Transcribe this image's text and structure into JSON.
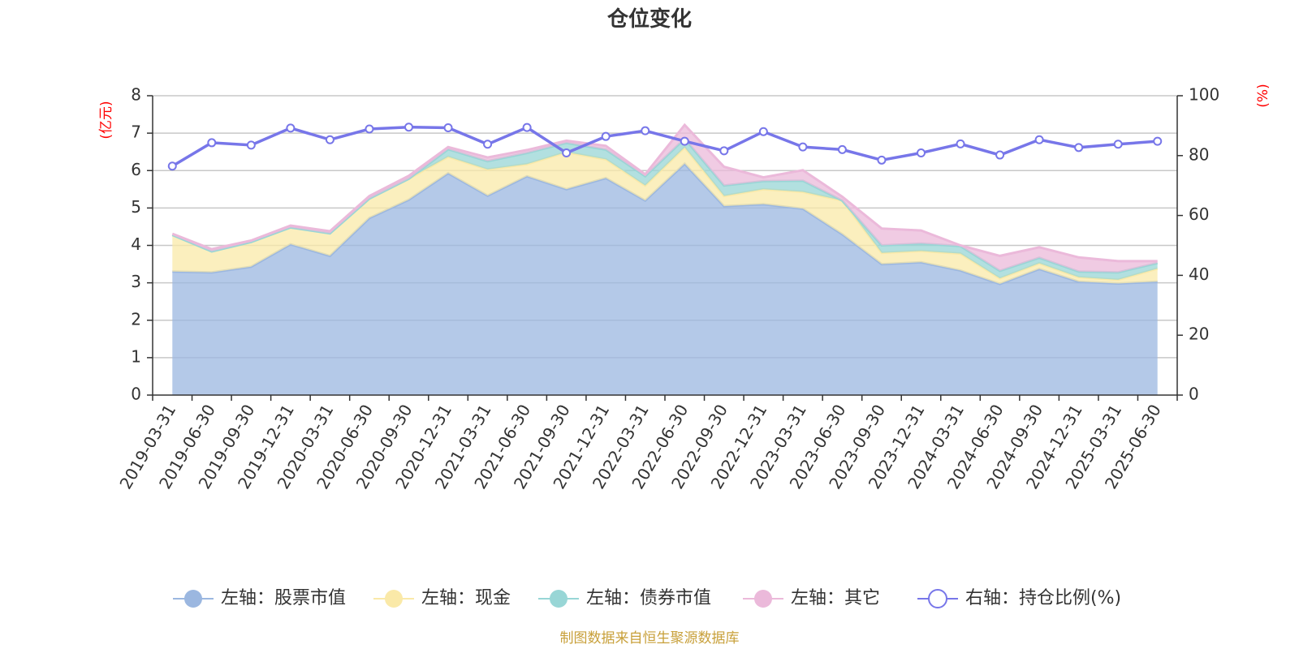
{
  "chart_data": {
    "type": "area",
    "title": "仓位变化",
    "source": "制图数据来自恒生聚源数据库",
    "left_unit": "(亿元)",
    "right_unit": "(%)",
    "categories": [
      "2019-03-31",
      "2019-06-30",
      "2019-09-30",
      "2019-12-31",
      "2020-03-31",
      "2020-06-30",
      "2020-09-30",
      "2020-12-31",
      "2021-03-31",
      "2021-06-30",
      "2021-09-30",
      "2021-12-31",
      "2022-03-31",
      "2022-06-30",
      "2022-09-30",
      "2022-12-31",
      "2023-03-31",
      "2023-06-30",
      "2023-09-30",
      "2023-12-31",
      "2024-03-31",
      "2024-06-30",
      "2024-09-30",
      "2024-12-31",
      "2025-03-31",
      "2025-06-30"
    ],
    "left_axis": {
      "min": 0,
      "max": 8,
      "ticks": [
        0,
        1,
        2,
        3,
        4,
        5,
        6,
        7,
        8
      ]
    },
    "right_axis": {
      "min": 0,
      "max": 100,
      "ticks": [
        0,
        20,
        40,
        60,
        80,
        100
      ]
    },
    "grid": true,
    "legend_position": "bottom",
    "series": [
      {
        "name": "左轴：股票市值",
        "axis": "left",
        "kind": "stacked-area",
        "color": "#9bb7e0",
        "values": [
          3.3,
          3.28,
          3.43,
          4.03,
          3.72,
          4.73,
          5.22,
          5.93,
          5.33,
          5.85,
          5.5,
          5.8,
          5.2,
          6.18,
          5.05,
          5.1,
          4.98,
          4.3,
          3.5,
          3.55,
          3.33,
          2.97,
          3.37,
          3.03,
          2.98,
          3.03
        ]
      },
      {
        "name": "左轴：现金",
        "axis": "left",
        "kind": "stacked-area",
        "color": "#fae9a8",
        "values": [
          0.98,
          0.56,
          0.66,
          0.45,
          0.6,
          0.52,
          0.56,
          0.44,
          0.7,
          0.32,
          0.99,
          0.5,
          0.4,
          0.44,
          0.27,
          0.4,
          0.45,
          0.9,
          0.3,
          0.3,
          0.45,
          0.15,
          0.15,
          0.12,
          0.1,
          0.35
        ]
      },
      {
        "name": "左轴：债券市值",
        "axis": "left",
        "kind": "stacked-area",
        "color": "#98d6d6",
        "values": [
          0,
          0,
          0,
          0,
          0,
          0,
          0,
          0.2,
          0.22,
          0.3,
          0.25,
          0.26,
          0.25,
          0.23,
          0.28,
          0.22,
          0.3,
          0,
          0.2,
          0.2,
          0.2,
          0.2,
          0.15,
          0.15,
          0.2,
          0.15
        ]
      },
      {
        "name": "左轴：其它",
        "axis": "left",
        "kind": "stacked-area",
        "color": "#ebb9da",
        "values": [
          0.03,
          0.06,
          0.04,
          0.05,
          0.06,
          0.07,
          0.08,
          0.06,
          0.1,
          0.08,
          0.06,
          0.1,
          0.05,
          0.37,
          0.5,
          0.1,
          0.28,
          0.1,
          0.45,
          0.35,
          0.02,
          0.4,
          0.28,
          0.38,
          0.3,
          0.05
        ]
      },
      {
        "name": "右轴：持仓比例(%)",
        "axis": "right",
        "kind": "line",
        "color": "#7776e9",
        "values": [
          76.5,
          84.3,
          83.5,
          89.2,
          85.3,
          88.9,
          89.5,
          89.3,
          83.8,
          89.4,
          80.9,
          86.4,
          88.3,
          84.8,
          81.6,
          88,
          82.9,
          82,
          78.5,
          80.9,
          83.9,
          80.2,
          85.3,
          82.7,
          83.8,
          84.8
        ]
      }
    ]
  }
}
